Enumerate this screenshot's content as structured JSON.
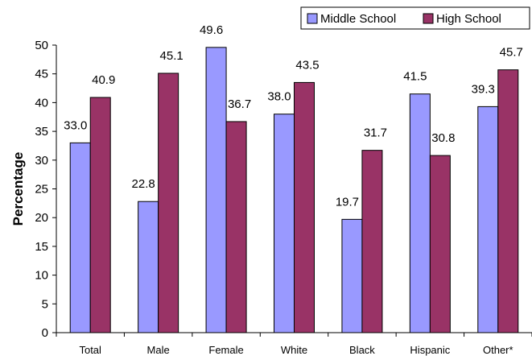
{
  "chart_data": {
    "type": "bar",
    "title": "",
    "xlabel": "",
    "ylabel": "Percentage",
    "ylim": [
      0,
      50
    ],
    "yticks": [
      0,
      5,
      10,
      15,
      20,
      25,
      30,
      35,
      40,
      45,
      50
    ],
    "categories": [
      "Total",
      "Male",
      "Female",
      "White",
      "Black",
      "Hispanic",
      "Other*"
    ],
    "series": [
      {
        "name": "Middle School",
        "color": "#9999ff",
        "values": [
          33.0,
          22.8,
          49.6,
          38.0,
          19.7,
          41.5,
          39.3
        ]
      },
      {
        "name": "High School",
        "color": "#993366",
        "values": [
          40.9,
          45.1,
          36.7,
          43.5,
          31.7,
          30.8,
          45.7
        ]
      }
    ],
    "data_labels": [
      [
        "33.0",
        "22.8",
        "49.6",
        "38.0",
        "19.7",
        "41.5",
        "39.3"
      ],
      [
        "40.9",
        "45.1",
        "36.7",
        "43.5",
        "31.7",
        "30.8",
        "45.7"
      ]
    ],
    "legend": {
      "position": "top-right"
    },
    "grid": false
  }
}
